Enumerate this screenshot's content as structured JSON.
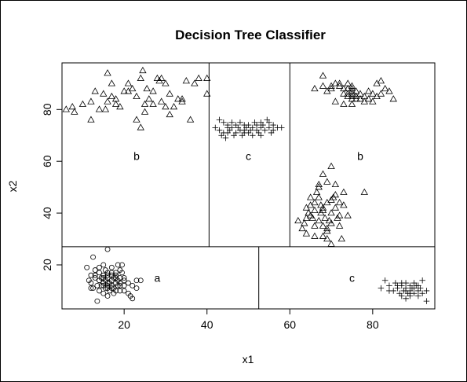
{
  "chart_data": {
    "type": "scatter",
    "title": "Decision Tree Classifier",
    "xlabel": "x1",
    "ylabel": "x2",
    "xlim": [
      5,
      95
    ],
    "ylim": [
      3,
      98
    ],
    "xticks": [
      20,
      40,
      60,
      80
    ],
    "yticks": [
      20,
      40,
      60,
      80
    ],
    "grid": false,
    "splits": [
      {
        "axis": "y",
        "value": 27,
        "from": 5,
        "to": 95
      },
      {
        "axis": "x",
        "value": 40.5,
        "from": 27,
        "to": 98
      },
      {
        "axis": "x",
        "value": 60,
        "from": 27,
        "to": 98
      },
      {
        "axis": "x",
        "value": 52.5,
        "from": 3,
        "to": 27
      }
    ],
    "region_labels": [
      {
        "text": "b",
        "x": 23,
        "y": 62
      },
      {
        "text": "c",
        "x": 50,
        "y": 62
      },
      {
        "text": "b",
        "x": 77,
        "y": 62
      },
      {
        "text": "a",
        "x": 28,
        "y": 15
      },
      {
        "text": "c",
        "x": 75,
        "y": 15
      }
    ],
    "series": [
      {
        "marker": "triangle",
        "points": [
          [
            6,
            80
          ],
          [
            7.5,
            81
          ],
          [
            8,
            79
          ],
          [
            10,
            82
          ],
          [
            12,
            83
          ],
          [
            13,
            87
          ],
          [
            15,
            86
          ],
          [
            15.5,
            80
          ],
          [
            16,
            94
          ],
          [
            17,
            85
          ],
          [
            18,
            82
          ],
          [
            19,
            81
          ],
          [
            20,
            87
          ],
          [
            21,
            90
          ],
          [
            22,
            88
          ],
          [
            23,
            85
          ],
          [
            24,
            92
          ],
          [
            24,
            73
          ],
          [
            24.5,
            95
          ],
          [
            25,
            82
          ],
          [
            25,
            79
          ],
          [
            25.5,
            88
          ],
          [
            26,
            84
          ],
          [
            27,
            87
          ],
          [
            28,
            92
          ],
          [
            28.5,
            91
          ],
          [
            29,
            83
          ],
          [
            29,
            92
          ],
          [
            30,
            81
          ],
          [
            31,
            86
          ],
          [
            31,
            78
          ],
          [
            32,
            81
          ],
          [
            33,
            84
          ],
          [
            34,
            83
          ],
          [
            34,
            84
          ],
          [
            35,
            91
          ],
          [
            36,
            76
          ],
          [
            37,
            90
          ],
          [
            38,
            92
          ],
          [
            40,
            86
          ],
          [
            40,
            92
          ],
          [
            16,
            83
          ],
          [
            18,
            84
          ],
          [
            14,
            80
          ],
          [
            21,
            87
          ],
          [
            23,
            76
          ],
          [
            27,
            82
          ],
          [
            30,
            90
          ],
          [
            17,
            90
          ],
          [
            12,
            76
          ],
          [
            66,
            88
          ],
          [
            68,
            89
          ],
          [
            69,
            87
          ],
          [
            70,
            88
          ],
          [
            71,
            90
          ],
          [
            72,
            89
          ],
          [
            73,
            88
          ],
          [
            73,
            86
          ],
          [
            74,
            86
          ],
          [
            74,
            85
          ],
          [
            75,
            88
          ],
          [
            75,
            89
          ],
          [
            75,
            86
          ],
          [
            75,
            85
          ],
          [
            75,
            84
          ],
          [
            75,
            82
          ],
          [
            76,
            87
          ],
          [
            76,
            85
          ],
          [
            77,
            86
          ],
          [
            77,
            84
          ],
          [
            78,
            83
          ],
          [
            78,
            85
          ],
          [
            79,
            87
          ],
          [
            79,
            84
          ],
          [
            80,
            86
          ],
          [
            80,
            83
          ],
          [
            81,
            85
          ],
          [
            81,
            90
          ],
          [
            82,
            91
          ],
          [
            82,
            86
          ],
          [
            83,
            88
          ],
          [
            84,
            87
          ],
          [
            85,
            84
          ],
          [
            68,
            93
          ],
          [
            70,
            89
          ],
          [
            72,
            90
          ],
          [
            73,
            82
          ],
          [
            74,
            88
          ],
          [
            76,
            84
          ],
          [
            71,
            83
          ],
          [
            74,
            90
          ],
          [
            75,
            87
          ],
          [
            62,
            37
          ],
          [
            63,
            34
          ],
          [
            63.5,
            36
          ],
          [
            64,
            42
          ],
          [
            64,
            38
          ],
          [
            64.5,
            40
          ],
          [
            65,
            43
          ],
          [
            65,
            46
          ],
          [
            65.5,
            38
          ],
          [
            66,
            41
          ],
          [
            66,
            35
          ],
          [
            66,
            44
          ],
          [
            66.5,
            48
          ],
          [
            67,
            37
          ],
          [
            67,
            50
          ],
          [
            67,
            46
          ],
          [
            67.5,
            43
          ],
          [
            67.5,
            40
          ],
          [
            68,
            55
          ],
          [
            68,
            41
          ],
          [
            68,
            35
          ],
          [
            68,
            31
          ],
          [
            68.5,
            38
          ],
          [
            69,
            34
          ],
          [
            69,
            44
          ],
          [
            69,
            30
          ],
          [
            69,
            33
          ],
          [
            69.5,
            37
          ],
          [
            70,
            40
          ],
          [
            70,
            36
          ],
          [
            70,
            28
          ],
          [
            70,
            58
          ],
          [
            70.5,
            46
          ],
          [
            71,
            42
          ],
          [
            71,
            51
          ],
          [
            71,
            47
          ],
          [
            71.5,
            38
          ],
          [
            72,
            35
          ],
          [
            72,
            44
          ],
          [
            72.5,
            30
          ],
          [
            73,
            43
          ],
          [
            73,
            48
          ],
          [
            74,
            39
          ],
          [
            78,
            48
          ],
          [
            69,
            52
          ],
          [
            67,
            51
          ],
          [
            64,
            32
          ],
          [
            66,
            31
          ],
          [
            72,
            39
          ],
          [
            70,
            45
          ],
          [
            68,
            42
          ],
          [
            65,
            39
          ]
        ]
      },
      {
        "marker": "plus",
        "points": [
          [
            42,
            73
          ],
          [
            43,
            72
          ],
          [
            43.5,
            70
          ],
          [
            44,
            75
          ],
          [
            44,
            71
          ],
          [
            44.5,
            69
          ],
          [
            45,
            73
          ],
          [
            45,
            74
          ],
          [
            45.5,
            72
          ],
          [
            46,
            75
          ],
          [
            46,
            73
          ],
          [
            46.5,
            70
          ],
          [
            47,
            74
          ],
          [
            47,
            71
          ],
          [
            47.5,
            73
          ],
          [
            48,
            72
          ],
          [
            48,
            75
          ],
          [
            48.5,
            70
          ],
          [
            49,
            74
          ],
          [
            49,
            72
          ],
          [
            49.5,
            73
          ],
          [
            50,
            71
          ],
          [
            50,
            74
          ],
          [
            50.5,
            72
          ],
          [
            51,
            73
          ],
          [
            51,
            70
          ],
          [
            51.5,
            75
          ],
          [
            52,
            74
          ],
          [
            52,
            72
          ],
          [
            52.5,
            71
          ],
          [
            53,
            73
          ],
          [
            53,
            75
          ],
          [
            53.5,
            74
          ],
          [
            54,
            72
          ],
          [
            54.5,
            76
          ],
          [
            55,
            73
          ],
          [
            55,
            75
          ],
          [
            55.5,
            71
          ],
          [
            56,
            72
          ],
          [
            56,
            74
          ],
          [
            57,
            73
          ],
          [
            58,
            73
          ],
          [
            43,
            76
          ],
          [
            45,
            71
          ],
          [
            49,
            71
          ],
          [
            53,
            70
          ],
          [
            82,
            11
          ],
          [
            83,
            14
          ],
          [
            84,
            12
          ],
          [
            85,
            10
          ],
          [
            85.5,
            13
          ],
          [
            86,
            11
          ],
          [
            86.5,
            9
          ],
          [
            87,
            12
          ],
          [
            87,
            8
          ],
          [
            87.5,
            10
          ],
          [
            88,
            13
          ],
          [
            88,
            11
          ],
          [
            88,
            7
          ],
          [
            88.5,
            9
          ],
          [
            89,
            12
          ],
          [
            89,
            10
          ],
          [
            89,
            8
          ],
          [
            89.5,
            11
          ],
          [
            90,
            13
          ],
          [
            90,
            9
          ],
          [
            90.5,
            12
          ],
          [
            91,
            10
          ],
          [
            91,
            8
          ],
          [
            91.5,
            11
          ],
          [
            92,
            14
          ],
          [
            92,
            9
          ],
          [
            93,
            10
          ],
          [
            93,
            6
          ],
          [
            86,
            12
          ],
          [
            88,
            10
          ],
          [
            90,
            11
          ],
          [
            87,
            13
          ],
          [
            89,
            9
          ],
          [
            84,
            10
          ],
          [
            91,
            12
          ]
        ]
      },
      {
        "marker": "circle",
        "points": [
          [
            11,
            19
          ],
          [
            11.5,
            14
          ],
          [
            12,
            16
          ],
          [
            12,
            13
          ],
          [
            12.5,
            23
          ],
          [
            12.5,
            11
          ],
          [
            13,
            15
          ],
          [
            13,
            18
          ],
          [
            13.5,
            12
          ],
          [
            13.5,
            6
          ],
          [
            14,
            14
          ],
          [
            14,
            17
          ],
          [
            14,
            10
          ],
          [
            14.5,
            12
          ],
          [
            14.5,
            15
          ],
          [
            15,
            20
          ],
          [
            15,
            16
          ],
          [
            15,
            13
          ],
          [
            15,
            9
          ],
          [
            15.5,
            11
          ],
          [
            15.5,
            18
          ],
          [
            15.5,
            14
          ],
          [
            16,
            12
          ],
          [
            16,
            15
          ],
          [
            16,
            17
          ],
          [
            16,
            26
          ],
          [
            16,
            8
          ],
          [
            16.5,
            13
          ],
          [
            16.5,
            10
          ],
          [
            17,
            16
          ],
          [
            17,
            14
          ],
          [
            17,
            12
          ],
          [
            17,
            19
          ],
          [
            17.5,
            11
          ],
          [
            17.5,
            15
          ],
          [
            17.5,
            9
          ],
          [
            18,
            17
          ],
          [
            18,
            13
          ],
          [
            18,
            16
          ],
          [
            18.5,
            12
          ],
          [
            18.5,
            14
          ],
          [
            18.5,
            20
          ],
          [
            19,
            10
          ],
          [
            19,
            15
          ],
          [
            19,
            13
          ],
          [
            19.5,
            20
          ],
          [
            19.5,
            17
          ],
          [
            20,
            15
          ],
          [
            20,
            12
          ],
          [
            20,
            14
          ],
          [
            21,
            9
          ],
          [
            21,
            13
          ],
          [
            21.5,
            8
          ],
          [
            22,
            12
          ],
          [
            22,
            7
          ],
          [
            23,
            14
          ],
          [
            23,
            11
          ],
          [
            24,
            14
          ],
          [
            14,
            14
          ],
          [
            15,
            12
          ],
          [
            16,
            16
          ],
          [
            17,
            11
          ],
          [
            18,
            15
          ],
          [
            19,
            12
          ],
          [
            13,
            16
          ],
          [
            12,
            11
          ],
          [
            16,
            13
          ],
          [
            17,
            17
          ],
          [
            15,
            15
          ],
          [
            18,
            10
          ],
          [
            20,
            10
          ],
          [
            14,
            19
          ],
          [
            16,
            11
          ],
          [
            19,
            18
          ]
        ]
      }
    ]
  }
}
